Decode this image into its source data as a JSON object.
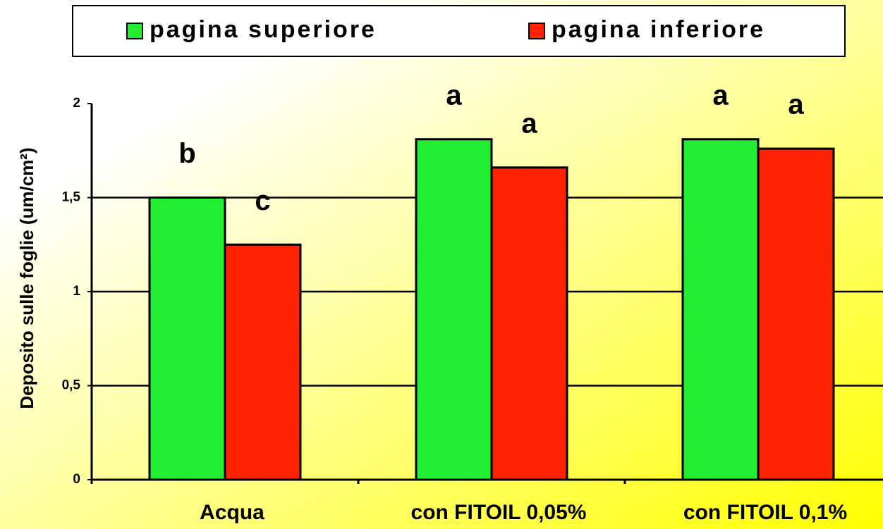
{
  "chart_data": {
    "type": "bar",
    "y_label": "Deposito sulle foglie (um/cm²)",
    "categories": [
      "Acqua",
      "con FITOIL 0,05%",
      "con FITOIL  0,1%"
    ],
    "series": [
      {
        "name": "pagina superiore",
        "color": "#22ee33",
        "values": [
          1.5,
          1.81,
          1.81
        ],
        "letters": [
          "b",
          "a",
          "a"
        ]
      },
      {
        "name": "pagina inferiore",
        "color": "#ff2200",
        "values": [
          1.25,
          1.66,
          1.76
        ],
        "letters": [
          "c",
          "a",
          "a"
        ]
      }
    ],
    "ylim": [
      0,
      2
    ],
    "yticks": [
      0,
      {
        "value": 0.5,
        "label": "0,5"
      },
      1,
      {
        "value": 1.5,
        "label": "1,5"
      },
      2
    ],
    "grid": true,
    "legend": "top"
  }
}
